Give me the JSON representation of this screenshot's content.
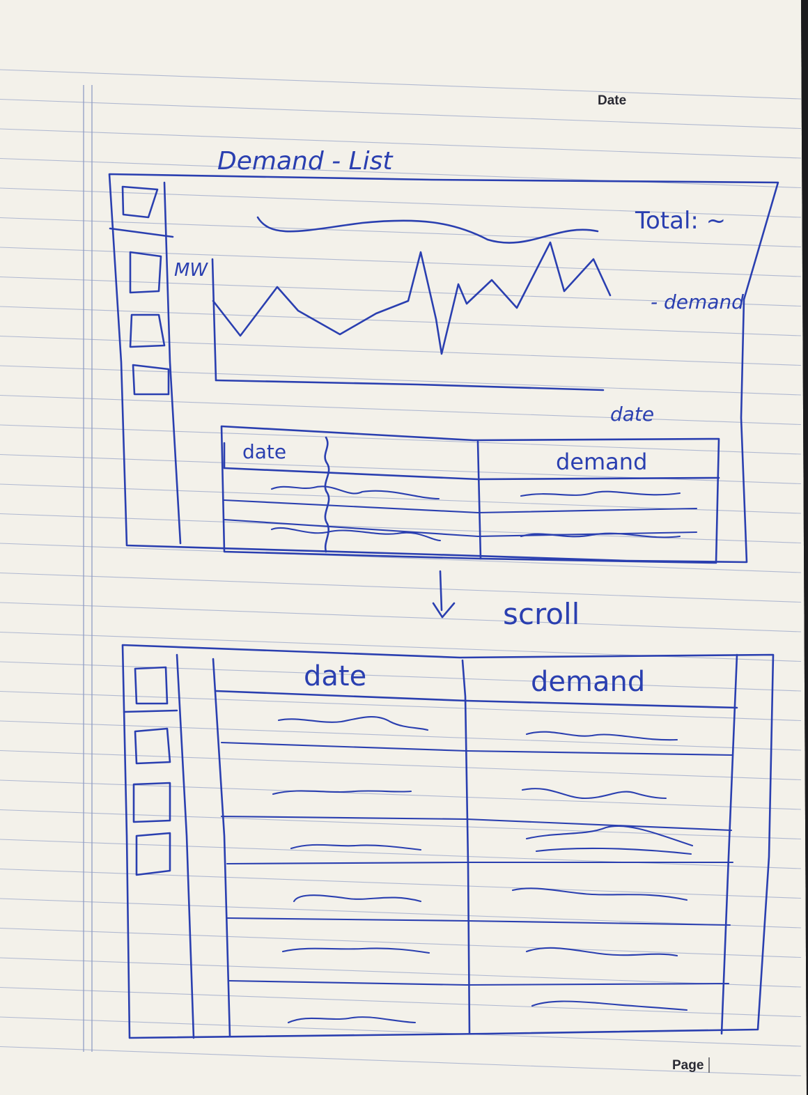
{
  "paper_header": {
    "date_label": "Date"
  },
  "paper_footer": {
    "page_label": "Page"
  },
  "sketch_title": "Demand - List",
  "screen1": {
    "total_label": "Total: ~",
    "y_axis_label": "MW",
    "x_axis_label": "date",
    "legend_label": "- demand",
    "table_headers": [
      "date",
      "demand"
    ]
  },
  "scroll_annotation": "scroll",
  "screen2": {
    "table_headers": [
      "date",
      "demand"
    ]
  },
  "colors": {
    "ink": "#2a3fb0",
    "paper": "#f3f1ea",
    "ruling": "#9aa6c8"
  }
}
